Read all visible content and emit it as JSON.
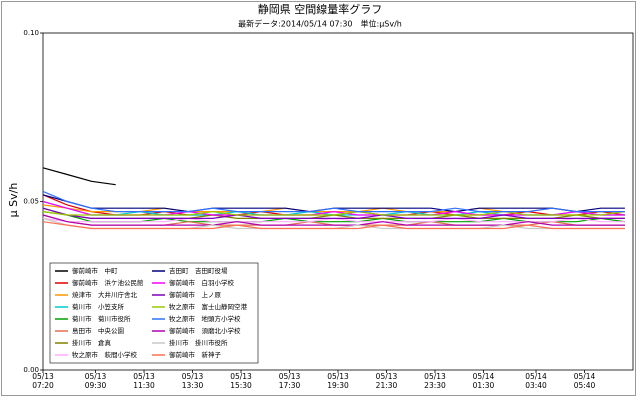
{
  "chart_data": {
    "type": "line",
    "title": "静岡県 空間線量率グラフ",
    "subtitle": "最新データ:2014/05/14 07:30　単位:μSv/h",
    "y_label": "μ Sv/h",
    "xlim": [
      0,
      1460
    ],
    "xticks": [
      {
        "value": 0,
        "label": "05/13\n07:20"
      },
      {
        "value": 130,
        "label": "05/13\n09:30"
      },
      {
        "value": 250,
        "label": "05/13\n11:30"
      },
      {
        "value": 370,
        "label": "05/13\n13:30"
      },
      {
        "value": 490,
        "label": "05/13\n15:30"
      },
      {
        "value": 610,
        "label": "05/13\n17:30"
      },
      {
        "value": 730,
        "label": "05/13\n19:30"
      },
      {
        "value": 850,
        "label": "05/13\n21:30"
      },
      {
        "value": 970,
        "label": "05/13\n23:30"
      },
      {
        "value": 1090,
        "label": "05/14\n01:30"
      },
      {
        "value": 1220,
        "label": "05/14\n03:40"
      },
      {
        "value": 1340,
        "label": "05/14\n05:40"
      }
    ],
    "ylim": [
      0,
      0.1
    ],
    "yticks": [
      {
        "value": 0,
        "label": "0.00"
      },
      {
        "value": 0.05,
        "label": "0.05"
      },
      {
        "value": 0.1,
        "label": "0.10"
      }
    ],
    "x": [
      0,
      60,
      120,
      180,
      240,
      300,
      360,
      420,
      480,
      540,
      600,
      660,
      720,
      780,
      840,
      900,
      960,
      1020,
      1080,
      1140,
      1200,
      1260,
      1320,
      1380,
      1440
    ],
    "series": [
      {
        "name": "御前崎市　中町",
        "color": "#000000",
        "values": [
          0.06,
          0.058,
          0.056,
          0.055,
          null,
          null,
          null,
          null,
          null,
          null,
          null,
          null,
          null,
          null,
          null,
          null,
          null,
          null,
          null,
          null,
          null,
          null,
          null,
          null,
          null
        ]
      },
      {
        "name": "御前崎市　浜ケ池公民館",
        "color": "#e00000",
        "values": [
          0.052,
          0.049,
          0.047,
          0.046,
          0.046,
          0.047,
          0.046,
          0.046,
          0.046,
          0.047,
          0.046,
          0.046,
          0.046,
          0.047,
          0.046,
          0.046,
          0.047,
          0.046,
          0.046,
          0.046,
          0.047,
          0.046,
          0.046,
          0.047,
          0.046
        ]
      },
      {
        "name": "焼津市　大井川庁舎北",
        "color": "#ff9900",
        "values": [
          0.049,
          0.048,
          0.047,
          0.047,
          0.047,
          0.048,
          0.047,
          0.047,
          0.047,
          0.047,
          0.048,
          0.047,
          0.047,
          0.047,
          0.048,
          0.047,
          0.047,
          0.047,
          0.048,
          0.047,
          0.047,
          0.048,
          0.047,
          0.047,
          0.047
        ]
      },
      {
        "name": "菊川市　小笠支所",
        "color": "#00cccc",
        "values": [
          0.05,
          0.048,
          0.046,
          0.046,
          0.047,
          0.046,
          0.046,
          0.046,
          0.047,
          0.046,
          0.046,
          0.047,
          0.046,
          0.046,
          0.046,
          0.047,
          0.046,
          0.046,
          0.047,
          0.046,
          0.046,
          0.046,
          0.047,
          0.046,
          0.046
        ]
      },
      {
        "name": "菊川市　菊川市役所",
        "color": "#00a000",
        "values": [
          0.048,
          0.046,
          0.044,
          0.044,
          0.044,
          0.045,
          0.044,
          0.044,
          0.044,
          0.044,
          0.045,
          0.044,
          0.044,
          0.044,
          0.045,
          0.044,
          0.044,
          0.044,
          0.044,
          0.045,
          0.044,
          0.044,
          0.044,
          0.045,
          0.044
        ]
      },
      {
        "name": "島田市　中央公園",
        "color": "#e07050",
        "values": [
          0.046,
          0.044,
          0.043,
          0.043,
          0.043,
          0.043,
          0.044,
          0.043,
          0.043,
          0.043,
          0.043,
          0.044,
          0.043,
          0.043,
          0.043,
          0.043,
          0.044,
          0.043,
          0.043,
          0.043,
          0.043,
          0.044,
          0.043,
          0.043,
          0.043
        ]
      },
      {
        "name": "掛川市　倉真",
        "color": "#808000",
        "values": [
          0.047,
          0.046,
          0.045,
          0.045,
          0.045,
          0.045,
          0.045,
          0.046,
          0.045,
          0.045,
          0.045,
          0.045,
          0.046,
          0.045,
          0.045,
          0.045,
          0.045,
          0.046,
          0.045,
          0.045,
          0.045,
          0.045,
          0.046,
          0.045,
          0.045
        ]
      },
      {
        "name": "牧之原市　萩間小学校",
        "color": "#ffaaff",
        "values": [
          0.045,
          0.044,
          0.044,
          0.044,
          0.044,
          0.044,
          0.045,
          0.044,
          0.044,
          0.044,
          0.044,
          0.044,
          0.045,
          0.044,
          0.044,
          0.044,
          0.044,
          0.045,
          0.044,
          0.044,
          0.044,
          0.044,
          0.045,
          0.044,
          0.044
        ]
      },
      {
        "name": "吉田町　吉田町役場",
        "color": "#000080",
        "values": [
          0.052,
          0.05,
          0.048,
          0.048,
          0.048,
          0.048,
          0.047,
          0.048,
          0.048,
          0.048,
          0.048,
          0.047,
          0.048,
          0.048,
          0.048,
          0.048,
          0.048,
          0.047,
          0.048,
          0.048,
          0.048,
          0.048,
          0.047,
          0.048,
          0.048
        ]
      },
      {
        "name": "御前崎市　白羽小学校",
        "color": "#ff00ff",
        "values": [
          0.05,
          0.048,
          0.046,
          0.046,
          0.046,
          0.046,
          0.047,
          0.046,
          0.046,
          0.046,
          0.046,
          0.046,
          0.047,
          0.046,
          0.046,
          0.046,
          0.046,
          0.047,
          0.046,
          0.046,
          0.046,
          0.046,
          0.047,
          0.046,
          0.046
        ]
      },
      {
        "name": "御前崎市　上ノ原",
        "color": "#8000c0",
        "values": [
          0.048,
          0.046,
          0.045,
          0.045,
          0.045,
          0.045,
          0.045,
          0.045,
          0.046,
          0.045,
          0.045,
          0.045,
          0.045,
          0.045,
          0.046,
          0.045,
          0.045,
          0.045,
          0.045,
          0.046,
          0.045,
          0.045,
          0.045,
          0.045,
          0.045
        ]
      },
      {
        "name": "牧之原市　富士山静岡空港",
        "color": "#99cc00",
        "values": [
          0.047,
          0.046,
          0.046,
          0.046,
          0.046,
          0.046,
          0.046,
          0.047,
          0.046,
          0.046,
          0.046,
          0.046,
          0.046,
          0.047,
          0.046,
          0.046,
          0.046,
          0.046,
          0.046,
          0.047,
          0.046,
          0.046,
          0.046,
          0.046,
          0.047
        ]
      },
      {
        "name": "牧之原市　地頭方小学校",
        "color": "#3070ff",
        "values": [
          0.053,
          0.05,
          0.048,
          0.047,
          0.047,
          0.047,
          0.047,
          0.048,
          0.047,
          0.047,
          0.047,
          0.047,
          0.048,
          0.047,
          0.047,
          0.047,
          0.047,
          0.048,
          0.047,
          0.047,
          0.047,
          0.048,
          0.047,
          0.047,
          0.047
        ]
      },
      {
        "name": "御前崎市　須磨北小学校",
        "color": "#b000b0",
        "values": [
          0.046,
          0.044,
          0.043,
          0.043,
          0.043,
          0.043,
          0.043,
          0.043,
          0.044,
          0.043,
          0.043,
          0.043,
          0.043,
          0.043,
          0.044,
          0.043,
          0.043,
          0.043,
          0.043,
          0.043,
          0.044,
          0.043,
          0.043,
          0.043,
          0.043
        ]
      },
      {
        "name": "掛川市　掛川市役所",
        "color": "#c8c8c8",
        "values": [
          0.045,
          0.043,
          0.042,
          0.042,
          0.042,
          0.042,
          0.042,
          0.043,
          0.042,
          0.042,
          0.042,
          0.042,
          0.042,
          0.043,
          0.042,
          0.042,
          0.042,
          0.042,
          0.042,
          0.043,
          0.042,
          0.042,
          0.042,
          0.042,
          0.042
        ]
      },
      {
        "name": "御前崎市　新神子",
        "color": "#ff7050",
        "values": [
          0.044,
          0.043,
          0.042,
          0.042,
          0.042,
          0.042,
          0.042,
          0.042,
          0.043,
          0.042,
          0.042,
          0.042,
          0.042,
          0.042,
          0.043,
          0.042,
          0.042,
          0.042,
          0.042,
          0.042,
          0.043,
          0.042,
          0.042,
          0.042,
          0.042
        ]
      }
    ]
  }
}
